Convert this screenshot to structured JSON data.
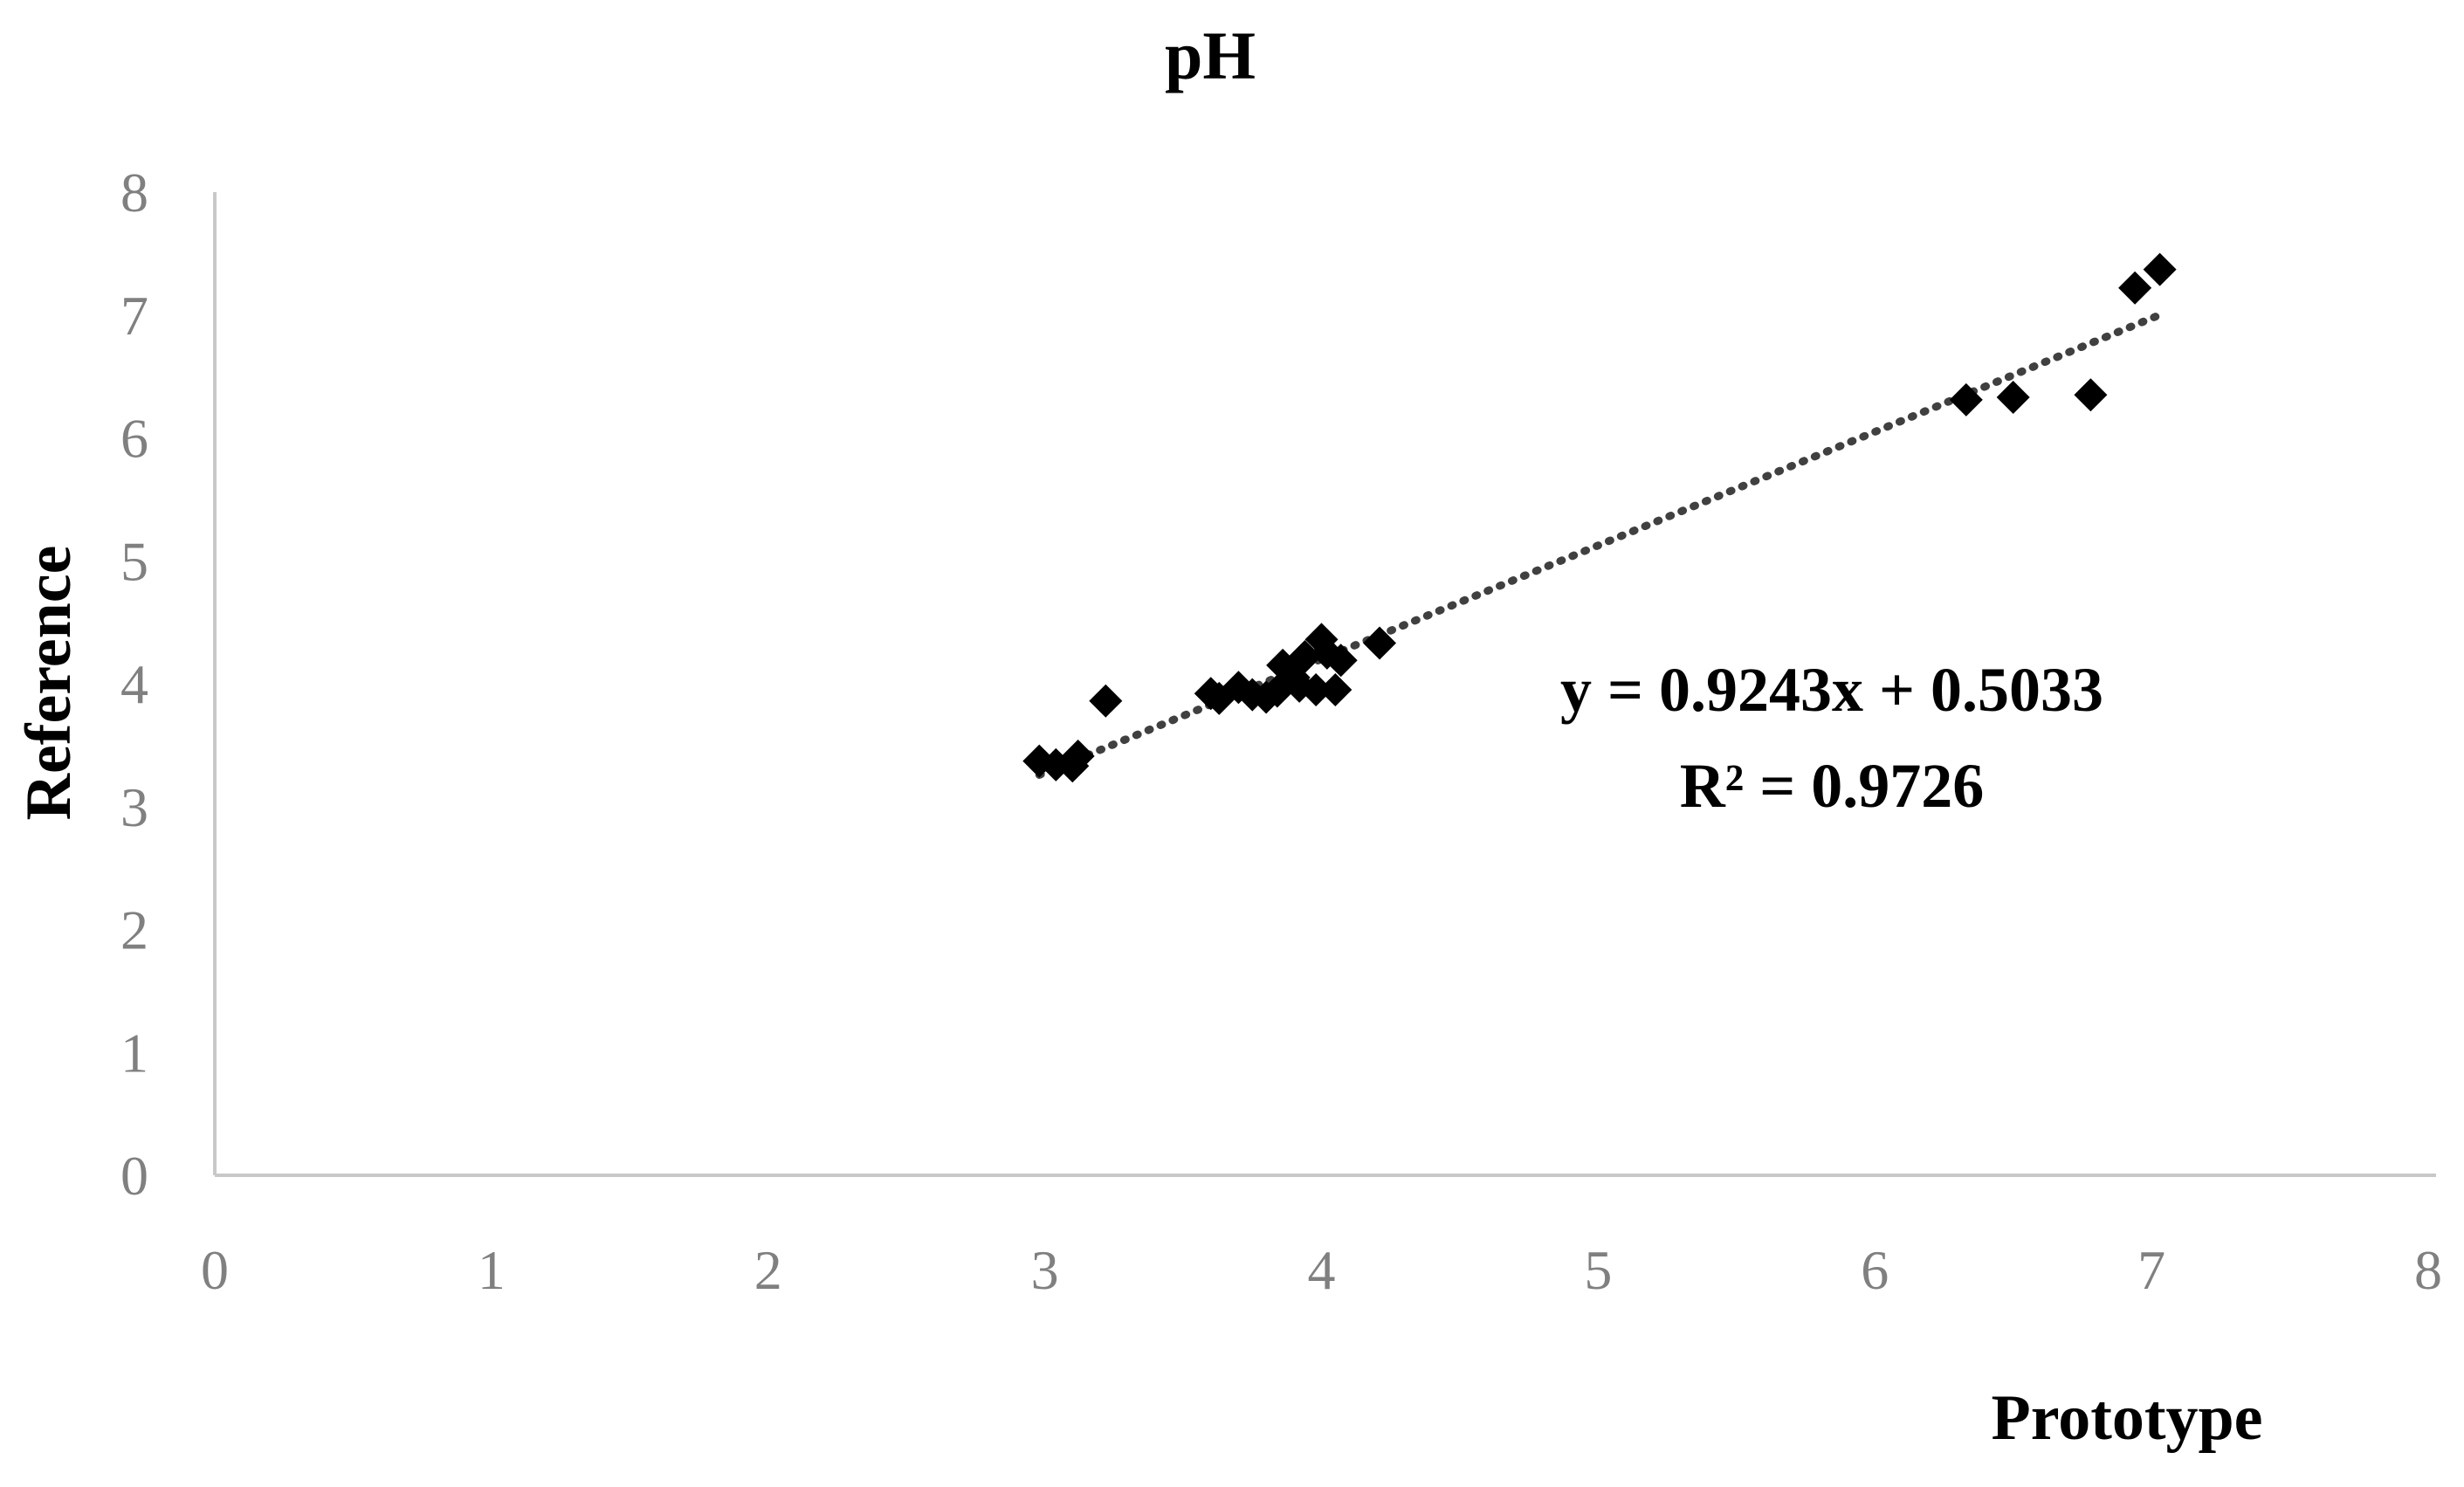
{
  "chart_data": {
    "type": "scatter",
    "title": "pH",
    "xlabel": "Prototype",
    "ylabel": "Reference",
    "xlim": [
      0,
      8
    ],
    "ylim": [
      0,
      8
    ],
    "x_ticks": [
      "0",
      "1",
      "2",
      "3",
      "4",
      "5",
      "6",
      "7",
      "8"
    ],
    "y_ticks": [
      "0",
      "1",
      "2",
      "3",
      "4",
      "5",
      "6",
      "7",
      "8"
    ],
    "grid": false,
    "legend": "none",
    "series": [
      {
        "marker": "diamond",
        "color": "#000000",
        "points": [
          {
            "x": 2.98,
            "y": 3.37
          },
          {
            "x": 3.04,
            "y": 3.34
          },
          {
            "x": 3.1,
            "y": 3.33
          },
          {
            "x": 3.12,
            "y": 3.41
          },
          {
            "x": 3.22,
            "y": 3.86
          },
          {
            "x": 3.6,
            "y": 3.92
          },
          {
            "x": 3.63,
            "y": 3.88
          },
          {
            "x": 3.7,
            "y": 3.97
          },
          {
            "x": 3.75,
            "y": 3.91
          },
          {
            "x": 3.8,
            "y": 3.89
          },
          {
            "x": 3.84,
            "y": 3.94
          },
          {
            "x": 3.86,
            "y": 4.15
          },
          {
            "x": 3.9,
            "y": 4.05
          },
          {
            "x": 3.92,
            "y": 3.98
          },
          {
            "x": 3.94,
            "y": 4.22
          },
          {
            "x": 3.98,
            "y": 3.95
          },
          {
            "x": 4.0,
            "y": 4.36
          },
          {
            "x": 4.02,
            "y": 4.25
          },
          {
            "x": 4.05,
            "y": 3.95
          },
          {
            "x": 4.07,
            "y": 4.19
          },
          {
            "x": 4.21,
            "y": 4.33
          },
          {
            "x": 6.33,
            "y": 6.31
          },
          {
            "x": 6.5,
            "y": 6.33
          },
          {
            "x": 6.78,
            "y": 6.35
          },
          {
            "x": 6.94,
            "y": 7.22
          },
          {
            "x": 7.03,
            "y": 7.37
          }
        ]
      }
    ],
    "trendline": {
      "style": "dotted",
      "color": "#404040",
      "slope": 0.9243,
      "intercept": 0.5033,
      "x_range": [
        2.98,
        7.03
      ],
      "equation_label": "y = 0.9243x + 0.5033",
      "r2_label": "R² = 0.9726"
    }
  }
}
